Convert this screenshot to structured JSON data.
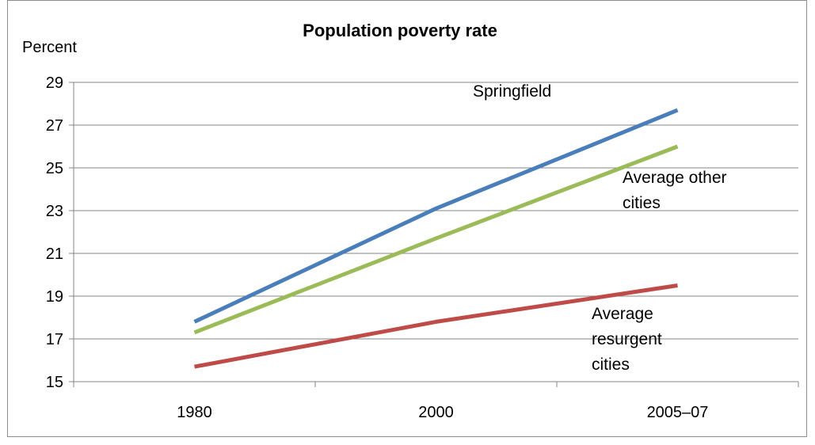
{
  "chart_data": {
    "type": "line",
    "title": "Population poverty rate",
    "ylabel": "Percent",
    "xlabel": "",
    "categories": [
      "1980",
      "2000",
      "2005–07"
    ],
    "ylim": [
      15,
      29
    ],
    "yticks": [
      15,
      17,
      19,
      21,
      23,
      25,
      27,
      29
    ],
    "grid": true,
    "series": [
      {
        "name": "Springfield",
        "values": [
          17.8,
          23.1,
          27.7
        ],
        "color": "#4a7ebb"
      },
      {
        "name": "Average other cities",
        "values": [
          17.3,
          21.7,
          26.0
        ],
        "color": "#9bbb59"
      },
      {
        "name": "Average resurgent cities",
        "values": [
          15.7,
          17.8,
          19.5
        ],
        "color": "#be4b48"
      }
    ],
    "annotations": [
      {
        "lines": [
          "Springfield"
        ],
        "series": 0
      },
      {
        "lines": [
          "Average other",
          "cities"
        ],
        "series": 1
      },
      {
        "lines": [
          "Average",
          "resurgent",
          "cities"
        ],
        "series": 2
      }
    ]
  }
}
